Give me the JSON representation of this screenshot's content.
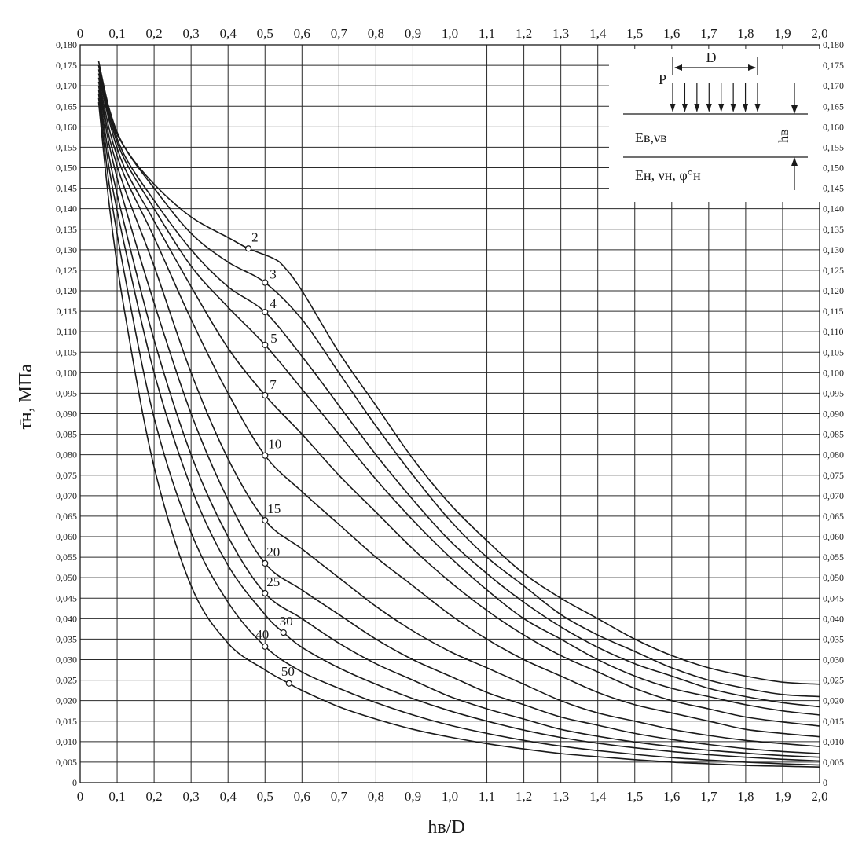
{
  "chart_data": {
    "type": "line",
    "title": "",
    "xlabel": "hв/D",
    "ylabel": "τ̄н, МПа",
    "xlim": [
      0,
      2.0
    ],
    "ylim": [
      0,
      0.18
    ],
    "grid": true,
    "x_ticks": [
      "0",
      "0,1",
      "0,2",
      "0,3",
      "0,4",
      "0,5",
      "0,6",
      "0,7",
      "0,8",
      "0,9",
      "1,0",
      "1,1",
      "1,2",
      "1,3",
      "1,4",
      "1,5",
      "1,6",
      "1,7",
      "1,8",
      "1,9",
      "2,0"
    ],
    "y_ticks": [
      "0",
      "0,005",
      "0,010",
      "0,015",
      "0,020",
      "0,025",
      "0,030",
      "0,035",
      "0,040",
      "0,045",
      "0,050",
      "0,055",
      "0,060",
      "0,065",
      "0,070",
      "0,075",
      "0,080",
      "0,085",
      "0,090",
      "0,095",
      "0,100",
      "0,105",
      "0,110",
      "0,115",
      "0,120",
      "0,125",
      "0,130",
      "0,135",
      "0,140",
      "0,145",
      "0,150",
      "0,155",
      "0,160",
      "0,165",
      "0,170",
      "0,175",
      "0,180"
    ],
    "series": [
      {
        "name": "2",
        "marker": [
          0.455,
          0.1303
        ],
        "points": [
          [
            0.05,
            0.175
          ],
          [
            0.08,
            0.163
          ],
          [
            0.12,
            0.155
          ],
          [
            0.2,
            0.146
          ],
          [
            0.3,
            0.138
          ],
          [
            0.4,
            0.133
          ],
          [
            0.455,
            0.1303
          ],
          [
            0.52,
            0.128
          ],
          [
            0.55,
            0.126
          ],
          [
            0.6,
            0.12
          ],
          [
            0.7,
            0.105
          ],
          [
            0.8,
            0.092
          ],
          [
            0.9,
            0.079
          ],
          [
            1.0,
            0.068
          ],
          [
            1.1,
            0.059
          ],
          [
            1.2,
            0.051
          ],
          [
            1.3,
            0.045
          ],
          [
            1.4,
            0.04
          ],
          [
            1.5,
            0.035
          ],
          [
            1.6,
            0.031
          ],
          [
            1.7,
            0.028
          ],
          [
            1.8,
            0.026
          ],
          [
            1.9,
            0.0245
          ],
          [
            2.0,
            0.024
          ]
        ]
      },
      {
        "name": "3",
        "marker": [
          0.5,
          0.122
        ],
        "points": [
          [
            0.05,
            0.176
          ],
          [
            0.08,
            0.164
          ],
          [
            0.12,
            0.155
          ],
          [
            0.2,
            0.145
          ],
          [
            0.3,
            0.134
          ],
          [
            0.4,
            0.127
          ],
          [
            0.5,
            0.122
          ],
          [
            0.6,
            0.113
          ],
          [
            0.7,
            0.1
          ],
          [
            0.8,
            0.087
          ],
          [
            0.9,
            0.075
          ],
          [
            1.0,
            0.064
          ],
          [
            1.1,
            0.055
          ],
          [
            1.2,
            0.048
          ],
          [
            1.3,
            0.041
          ],
          [
            1.4,
            0.036
          ],
          [
            1.5,
            0.032
          ],
          [
            1.6,
            0.028
          ],
          [
            1.7,
            0.025
          ],
          [
            1.8,
            0.023
          ],
          [
            1.9,
            0.0215
          ],
          [
            2.0,
            0.021
          ]
        ]
      },
      {
        "name": "4",
        "marker": [
          0.5,
          0.1148
        ],
        "points": [
          [
            0.05,
            0.175
          ],
          [
            0.08,
            0.163
          ],
          [
            0.12,
            0.153
          ],
          [
            0.2,
            0.142
          ],
          [
            0.3,
            0.13
          ],
          [
            0.4,
            0.121
          ],
          [
            0.5,
            0.1148
          ],
          [
            0.6,
            0.104
          ],
          [
            0.7,
            0.092
          ],
          [
            0.8,
            0.08
          ],
          [
            0.9,
            0.069
          ],
          [
            1.0,
            0.059
          ],
          [
            1.1,
            0.051
          ],
          [
            1.2,
            0.044
          ],
          [
            1.3,
            0.038
          ],
          [
            1.4,
            0.033
          ],
          [
            1.5,
            0.029
          ],
          [
            1.6,
            0.026
          ],
          [
            1.7,
            0.023
          ],
          [
            1.8,
            0.021
          ],
          [
            1.9,
            0.0195
          ],
          [
            2.0,
            0.0185
          ]
        ]
      },
      {
        "name": "5",
        "marker": [
          0.5,
          0.1068
        ],
        "points": [
          [
            0.05,
            0.174
          ],
          [
            0.08,
            0.162
          ],
          [
            0.12,
            0.152
          ],
          [
            0.2,
            0.14
          ],
          [
            0.3,
            0.126
          ],
          [
            0.4,
            0.116
          ],
          [
            0.5,
            0.1068
          ],
          [
            0.6,
            0.096
          ],
          [
            0.7,
            0.085
          ],
          [
            0.8,
            0.074
          ],
          [
            0.9,
            0.064
          ],
          [
            1.0,
            0.055
          ],
          [
            1.1,
            0.047
          ],
          [
            1.2,
            0.04
          ],
          [
            1.3,
            0.035
          ],
          [
            1.4,
            0.03
          ],
          [
            1.5,
            0.026
          ],
          [
            1.6,
            0.023
          ],
          [
            1.7,
            0.021
          ],
          [
            1.8,
            0.019
          ],
          [
            1.9,
            0.0175
          ],
          [
            2.0,
            0.0165
          ]
        ]
      },
      {
        "name": "7",
        "marker": [
          0.5,
          0.0945
        ],
        "points": [
          [
            0.05,
            0.173
          ],
          [
            0.08,
            0.161
          ],
          [
            0.12,
            0.15
          ],
          [
            0.2,
            0.137
          ],
          [
            0.3,
            0.121
          ],
          [
            0.4,
            0.106
          ],
          [
            0.5,
            0.0945
          ],
          [
            0.6,
            0.085
          ],
          [
            0.7,
            0.075
          ],
          [
            0.8,
            0.066
          ],
          [
            0.9,
            0.057
          ],
          [
            1.0,
            0.049
          ],
          [
            1.1,
            0.042
          ],
          [
            1.2,
            0.036
          ],
          [
            1.3,
            0.031
          ],
          [
            1.4,
            0.027
          ],
          [
            1.5,
            0.023
          ],
          [
            1.6,
            0.02
          ],
          [
            1.7,
            0.018
          ],
          [
            1.8,
            0.016
          ],
          [
            1.9,
            0.0148
          ],
          [
            2.0,
            0.0138
          ]
        ]
      },
      {
        "name": "10",
        "marker": [
          0.5,
          0.0798
        ],
        "points": [
          [
            0.05,
            0.172
          ],
          [
            0.08,
            0.159
          ],
          [
            0.12,
            0.148
          ],
          [
            0.2,
            0.133
          ],
          [
            0.3,
            0.113
          ],
          [
            0.4,
            0.095
          ],
          [
            0.5,
            0.0798
          ],
          [
            0.6,
            0.071
          ],
          [
            0.7,
            0.063
          ],
          [
            0.8,
            0.055
          ],
          [
            0.9,
            0.048
          ],
          [
            1.0,
            0.041
          ],
          [
            1.1,
            0.035
          ],
          [
            1.2,
            0.03
          ],
          [
            1.3,
            0.026
          ],
          [
            1.4,
            0.022
          ],
          [
            1.5,
            0.019
          ],
          [
            1.6,
            0.017
          ],
          [
            1.7,
            0.015
          ],
          [
            1.8,
            0.013
          ],
          [
            1.9,
            0.012
          ],
          [
            2.0,
            0.0112
          ]
        ]
      },
      {
        "name": "15",
        "marker": [
          0.5,
          0.064
        ],
        "points": [
          [
            0.05,
            0.171
          ],
          [
            0.08,
            0.157
          ],
          [
            0.12,
            0.145
          ],
          [
            0.2,
            0.126
          ],
          [
            0.3,
            0.1
          ],
          [
            0.4,
            0.079
          ],
          [
            0.5,
            0.064
          ],
          [
            0.6,
            0.057
          ],
          [
            0.7,
            0.05
          ],
          [
            0.8,
            0.043
          ],
          [
            0.9,
            0.037
          ],
          [
            1.0,
            0.032
          ],
          [
            1.1,
            0.028
          ],
          [
            1.2,
            0.024
          ],
          [
            1.3,
            0.02
          ],
          [
            1.4,
            0.017
          ],
          [
            1.5,
            0.015
          ],
          [
            1.6,
            0.013
          ],
          [
            1.7,
            0.0115
          ],
          [
            1.8,
            0.0103
          ],
          [
            1.9,
            0.0095
          ],
          [
            2.0,
            0.0088
          ]
        ]
      },
      {
        "name": "20",
        "marker": [
          0.5,
          0.0535
        ],
        "points": [
          [
            0.05,
            0.17
          ],
          [
            0.08,
            0.155
          ],
          [
            0.12,
            0.141
          ],
          [
            0.2,
            0.117
          ],
          [
            0.3,
            0.09
          ],
          [
            0.4,
            0.069
          ],
          [
            0.5,
            0.0535
          ],
          [
            0.6,
            0.047
          ],
          [
            0.7,
            0.041
          ],
          [
            0.8,
            0.035
          ],
          [
            0.9,
            0.03
          ],
          [
            1.0,
            0.026
          ],
          [
            1.1,
            0.022
          ],
          [
            1.2,
            0.019
          ],
          [
            1.3,
            0.016
          ],
          [
            1.4,
            0.014
          ],
          [
            1.5,
            0.012
          ],
          [
            1.6,
            0.0105
          ],
          [
            1.7,
            0.0093
          ],
          [
            1.8,
            0.0083
          ],
          [
            1.9,
            0.0076
          ],
          [
            2.0,
            0.0071
          ]
        ]
      },
      {
        "name": "25",
        "marker": [
          0.5,
          0.0462
        ],
        "points": [
          [
            0.05,
            0.169
          ],
          [
            0.08,
            0.152
          ],
          [
            0.12,
            0.136
          ],
          [
            0.2,
            0.108
          ],
          [
            0.3,
            0.08
          ],
          [
            0.4,
            0.06
          ],
          [
            0.5,
            0.0462
          ],
          [
            0.6,
            0.04
          ],
          [
            0.7,
            0.034
          ],
          [
            0.8,
            0.029
          ],
          [
            0.9,
            0.025
          ],
          [
            1.0,
            0.021
          ],
          [
            1.1,
            0.018
          ],
          [
            1.2,
            0.0155
          ],
          [
            1.3,
            0.013
          ],
          [
            1.4,
            0.0113
          ],
          [
            1.5,
            0.0099
          ],
          [
            1.6,
            0.0088
          ],
          [
            1.7,
            0.0079
          ],
          [
            1.8,
            0.0072
          ],
          [
            1.9,
            0.0066
          ],
          [
            2.0,
            0.0062
          ]
        ]
      },
      {
        "name": "30",
        "marker": [
          0.55,
          0.0366
        ],
        "points": [
          [
            0.05,
            0.168
          ],
          [
            0.08,
            0.149
          ],
          [
            0.12,
            0.131
          ],
          [
            0.2,
            0.1
          ],
          [
            0.3,
            0.072
          ],
          [
            0.4,
            0.053
          ],
          [
            0.5,
            0.041
          ],
          [
            0.55,
            0.0366
          ],
          [
            0.6,
            0.033
          ],
          [
            0.7,
            0.028
          ],
          [
            0.8,
            0.024
          ],
          [
            0.9,
            0.0205
          ],
          [
            1.0,
            0.0175
          ],
          [
            1.1,
            0.015
          ],
          [
            1.2,
            0.0128
          ],
          [
            1.3,
            0.011
          ],
          [
            1.4,
            0.0096
          ],
          [
            1.5,
            0.0085
          ],
          [
            1.6,
            0.0076
          ],
          [
            1.7,
            0.0068
          ],
          [
            1.8,
            0.0062
          ],
          [
            1.9,
            0.0057
          ],
          [
            2.0,
            0.0053
          ]
        ]
      },
      {
        "name": "40",
        "marker": [
          0.5,
          0.0332
        ],
        "points": [
          [
            0.05,
            0.167
          ],
          [
            0.08,
            0.145
          ],
          [
            0.12,
            0.124
          ],
          [
            0.2,
            0.089
          ],
          [
            0.3,
            0.061
          ],
          [
            0.4,
            0.044
          ],
          [
            0.5,
            0.0332
          ],
          [
            0.6,
            0.027
          ],
          [
            0.7,
            0.023
          ],
          [
            0.8,
            0.0195
          ],
          [
            0.9,
            0.0165
          ],
          [
            1.0,
            0.014
          ],
          [
            1.1,
            0.012
          ],
          [
            1.2,
            0.0103
          ],
          [
            1.3,
            0.0089
          ],
          [
            1.4,
            0.0078
          ],
          [
            1.5,
            0.0069
          ],
          [
            1.6,
            0.0061
          ],
          [
            1.7,
            0.0055
          ],
          [
            1.8,
            0.005
          ],
          [
            1.9,
            0.0046
          ],
          [
            2.0,
            0.0043
          ]
        ]
      },
      {
        "name": "50",
        "marker": [
          0.565,
          0.0242
        ],
        "points": [
          [
            0.05,
            0.166
          ],
          [
            0.08,
            0.14
          ],
          [
            0.12,
            0.115
          ],
          [
            0.2,
            0.077
          ],
          [
            0.3,
            0.048
          ],
          [
            0.4,
            0.034
          ],
          [
            0.5,
            0.0275
          ],
          [
            0.565,
            0.0242
          ],
          [
            0.6,
            0.0225
          ],
          [
            0.7,
            0.0185
          ],
          [
            0.8,
            0.0155
          ],
          [
            0.9,
            0.013
          ],
          [
            1.0,
            0.0111
          ],
          [
            1.1,
            0.0095
          ],
          [
            1.2,
            0.0082
          ],
          [
            1.3,
            0.0071
          ],
          [
            1.4,
            0.0063
          ],
          [
            1.5,
            0.0056
          ],
          [
            1.6,
            0.005
          ],
          [
            1.7,
            0.0046
          ],
          [
            1.8,
            0.0042
          ],
          [
            1.9,
            0.004
          ],
          [
            2.0,
            0.0038
          ]
        ]
      }
    ],
    "inset": {
      "load_label": "P",
      "width_label": "D",
      "upper_layer": "Eв,νв",
      "lower_layer": "Eн, νн, φ°н",
      "thickness_label": "hв"
    }
  }
}
